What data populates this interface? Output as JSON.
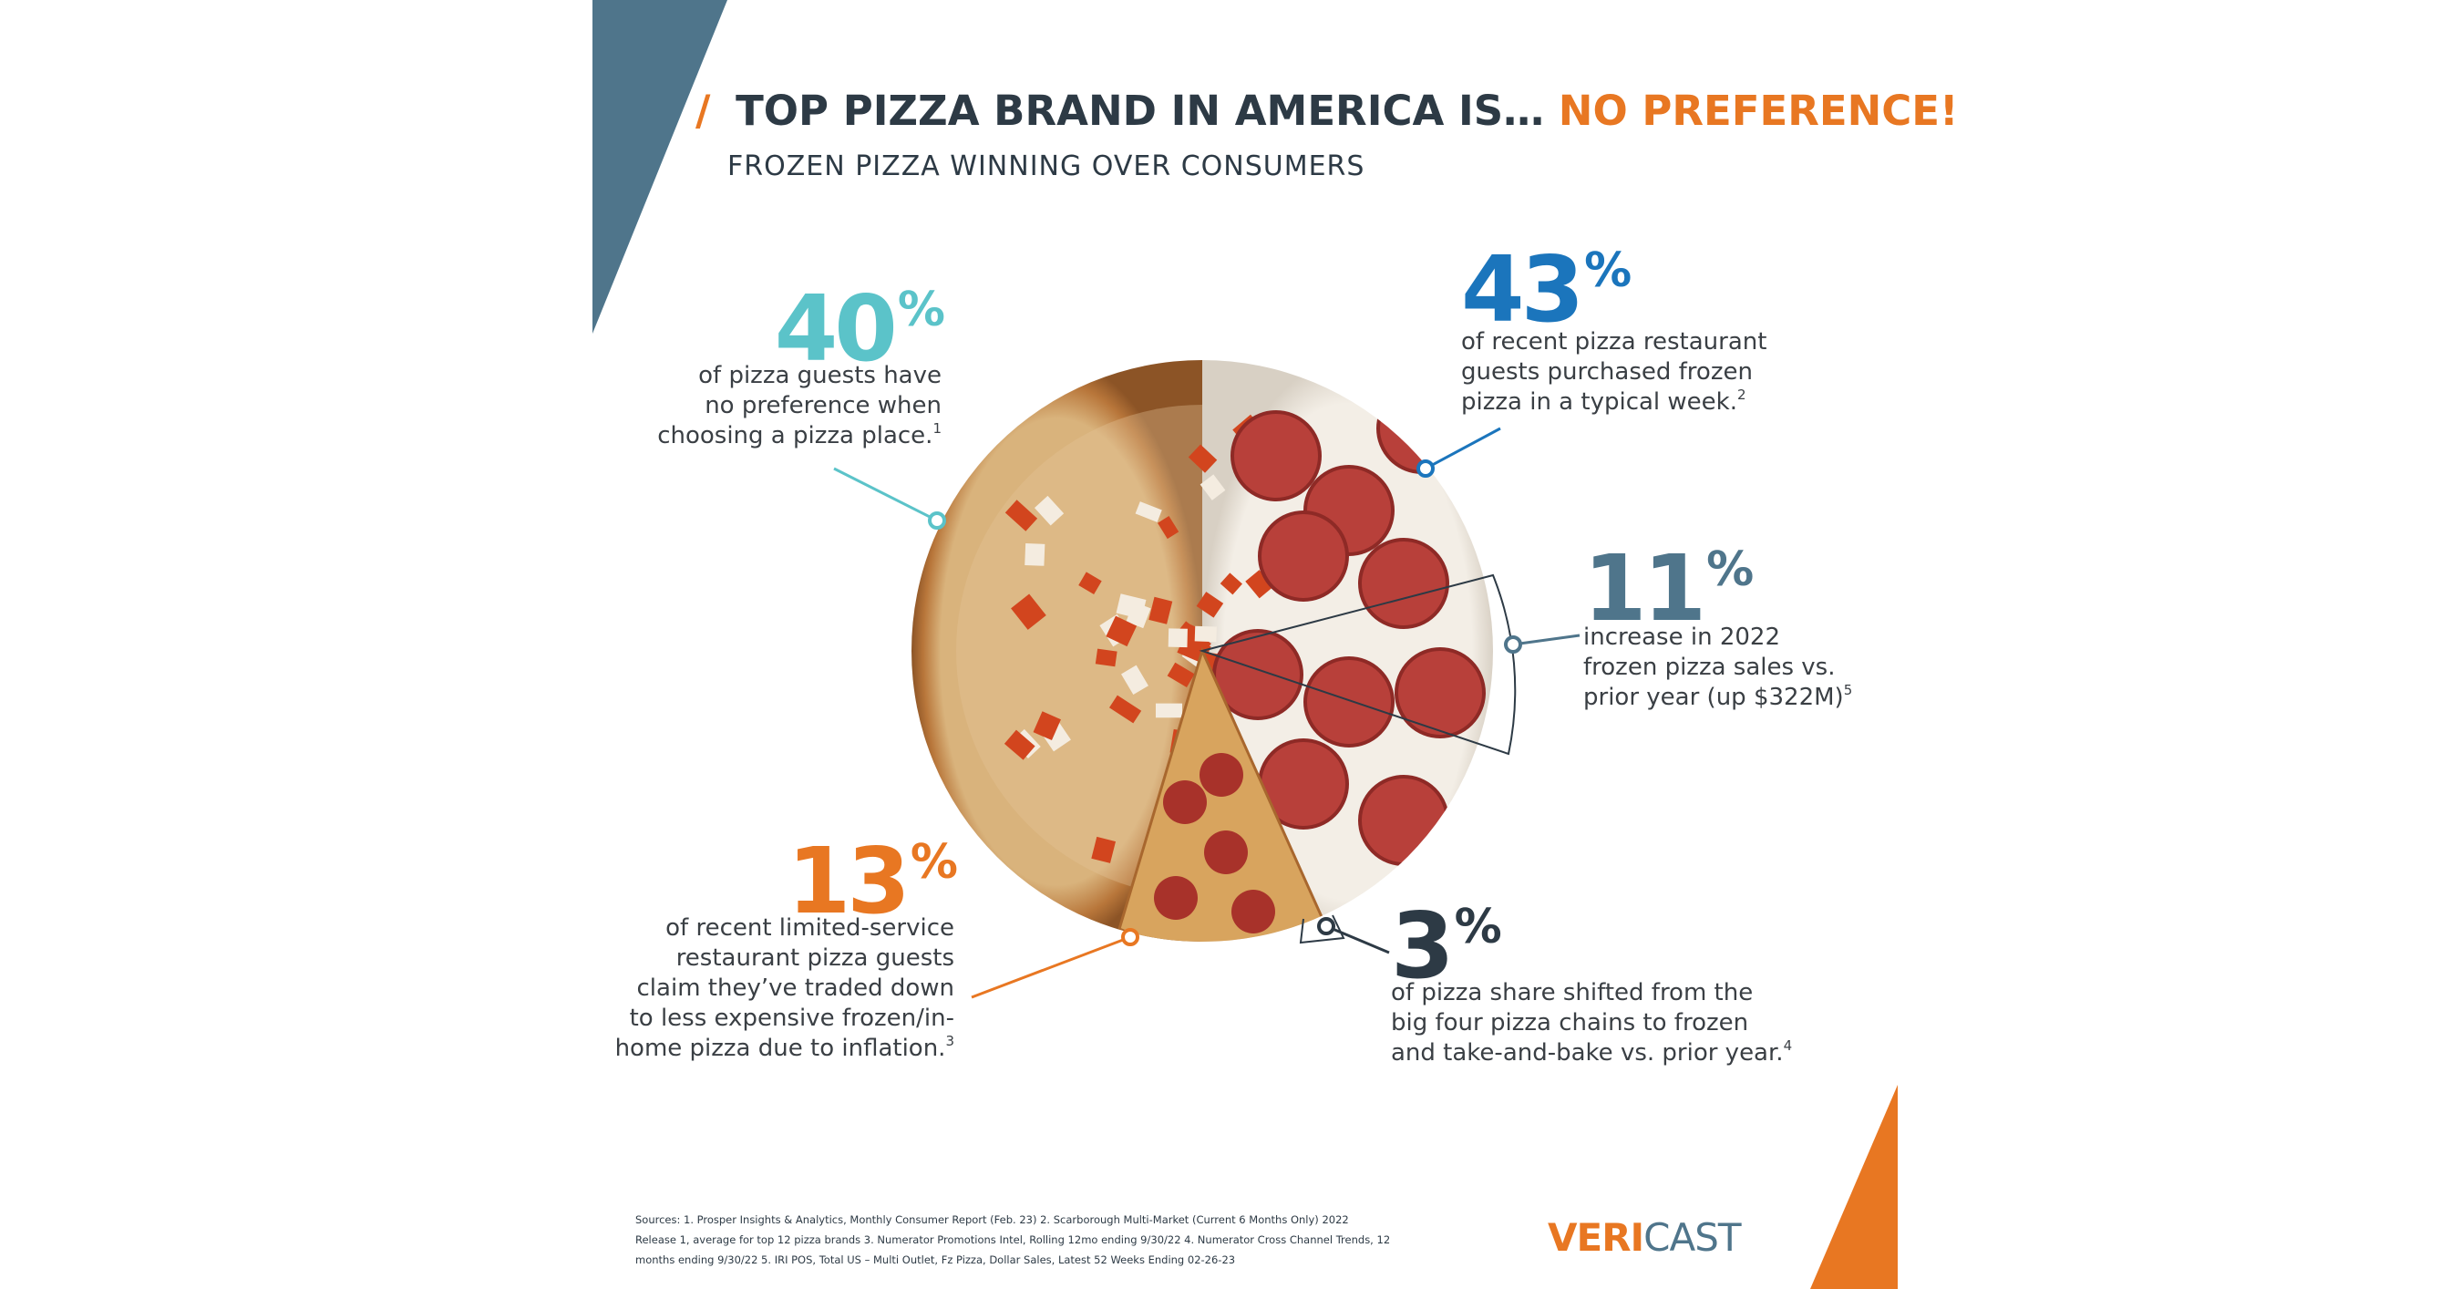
{
  "header": {
    "slash": "/",
    "title": "TOP PIZZA BRAND IN AMERICA IS…",
    "title_highlight": "NO PREFERENCE!",
    "subtitle": "FROZEN PIZZA WINNING OVER CONSUMERS"
  },
  "stats": [
    {
      "value": "40",
      "unit": "%",
      "lines": [
        "of pizza guests have",
        "no preference when",
        "choosing a pizza place."
      ],
      "note": "1"
    },
    {
      "value": "43",
      "unit": "%",
      "lines": [
        "of recent pizza restaurant",
        "guests purchased frozen",
        "pizza in a typical week."
      ],
      "note": "2"
    },
    {
      "value": "11",
      "unit": "%",
      "lines": [
        "increase in 2022",
        "frozen pizza sales vs.",
        "prior year (up $322M)"
      ],
      "note": "5"
    },
    {
      "value": "13",
      "unit": "%",
      "lines": [
        "of recent limited-service",
        "restaurant pizza guests",
        "claim they’ve traded down",
        "to less expensive frozen/in-",
        "home pizza due to inflation."
      ],
      "note": "3"
    },
    {
      "value": "3",
      "unit": "%",
      "lines": [
        "of pizza share shifted from the",
        "big four pizza chains to frozen",
        "and take-and-bake vs. prior year."
      ],
      "note": "4"
    }
  ],
  "sources": [
    "Sources:  1. Prosper Insights & Analytics, Monthly Consumer Report (Feb. 23)  2. Scarborough Multi-Market (Current 6 Months Only) 2022",
    "Release 1, average for top 12 pizza brands 3. Numerator Promotions Intel, Rolling 12mo ending 9/30/22 4. Numerator Cross Channel Trends, 12",
    "months ending 9/30/22  5. IRI POS, Total US – Multi Outlet, Fz Pizza, Dollar Sales, Latest 52 Weeks Ending 02-26-23"
  ],
  "logo": {
    "part1": "VERI",
    "part2": "CAST"
  }
}
